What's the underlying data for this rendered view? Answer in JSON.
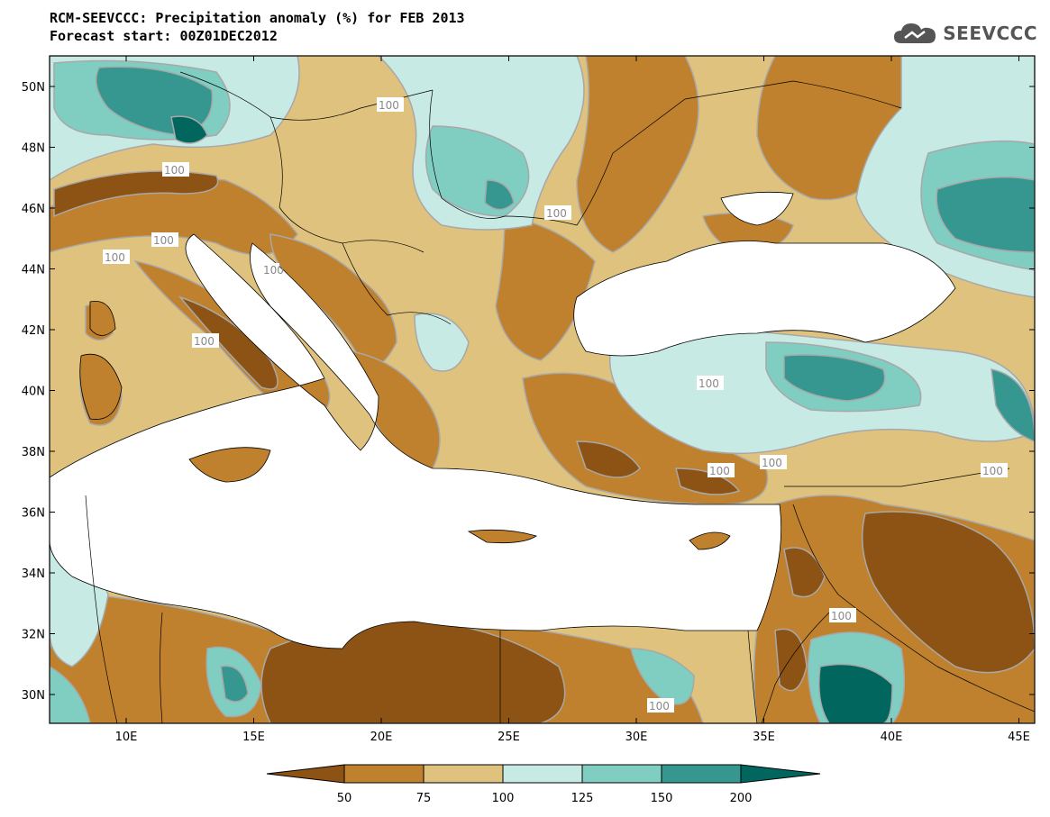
{
  "title": {
    "line1": "RCM-SEEVCCC: Precipitation anomaly (%) for FEB 2013",
    "line2": "Forecast start: 00Z01DEC2012"
  },
  "logo": {
    "text": "SEEVCCC",
    "icon": "cloud-icon"
  },
  "map": {
    "lat_ticks": [
      "50N",
      "48N",
      "46N",
      "44N",
      "42N",
      "40N",
      "38N",
      "36N",
      "34N",
      "32N",
      "30N"
    ],
    "lon_ticks": [
      "10E",
      "15E",
      "20E",
      "25E",
      "30E",
      "35E",
      "40E",
      "45E"
    ],
    "contour_labels": [
      "100",
      "100",
      "100",
      "100",
      "100",
      "100",
      "100",
      "100",
      "100",
      "100",
      "100",
      "100",
      "100"
    ]
  },
  "colorbar": {
    "labels": [
      "50",
      "75",
      "100",
      "125",
      "150",
      "200"
    ],
    "colors": [
      "#8c5314",
      "#bf812d",
      "#dfc27d",
      "#c7eae5",
      "#80cdc1",
      "#35978f",
      "#01665e"
    ]
  },
  "colors": {
    "very_dry": "#8c5314",
    "dry": "#bf812d",
    "slightly_dry": "#dfc27d",
    "slightly_wet": "#c7eae5",
    "wet": "#80cdc1",
    "very_wet": "#35978f",
    "extreme_wet": "#01665e",
    "water": "#ffffff"
  }
}
